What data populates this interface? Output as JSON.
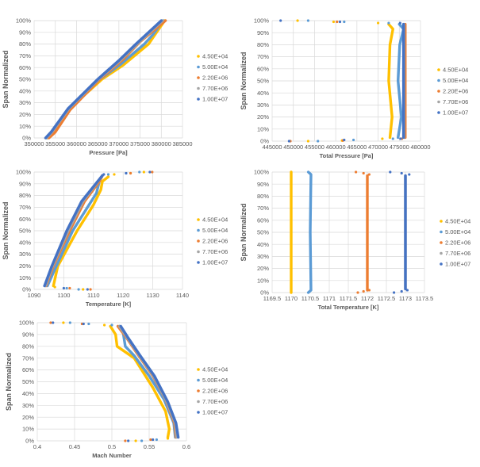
{
  "colors": {
    "4.50E+04": "#FFC000",
    "5.00E+04": "#5B9BD5",
    "2.20E+06": "#ED7D31",
    "7.70E+06": "#A5A5A5",
    "1.00E+07": "#4472C4"
  },
  "chart_data": [
    {
      "type": "scatter",
      "xlabel": "Pressure [Pa]",
      "ylabel": "Span Normalized",
      "xlim": [
        350000,
        385000
      ],
      "ylim": [
        0,
        100
      ],
      "grid": true,
      "legend": "right",
      "xticks": [
        "350000",
        "355000",
        "360000",
        "365000",
        "370000",
        "375000",
        "380000",
        "385000"
      ],
      "yticks": [
        "0%",
        "10%",
        "20%",
        "30%",
        "40%",
        "50%",
        "60%",
        "70%",
        "80%",
        "90%",
        "100%"
      ],
      "series": [
        {
          "name": "4.50E+04",
          "line": [
            [
              353200,
              0
            ],
            [
              358300,
              25
            ],
            [
              366000,
              50
            ],
            [
              371000,
              62
            ],
            [
              377000,
              80
            ],
            [
              378500,
              88
            ],
            [
              380800,
              100
            ]
          ],
          "points": []
        },
        {
          "name": "5.00E+04",
          "line": [
            [
              353000,
              0
            ],
            [
              358300,
              25
            ],
            [
              365500,
              50
            ],
            [
              370500,
              63
            ],
            [
              376000,
              80
            ],
            [
              378000,
              88
            ],
            [
              380500,
              100
            ]
          ],
          "points": []
        },
        {
          "name": "2.20E+06",
          "line": [
            [
              353500,
              0
            ],
            [
              355000,
              5
            ],
            [
              358500,
              24
            ],
            [
              365500,
              50
            ],
            [
              371000,
              67
            ],
            [
              375000,
              82
            ],
            [
              381000,
              100
            ]
          ],
          "points": []
        },
        {
          "name": "7.70E+06",
          "line": [
            [
              352900,
              0
            ],
            [
              354200,
              5
            ],
            [
              358200,
              25
            ],
            [
              365200,
              50
            ],
            [
              370300,
              66
            ],
            [
              374300,
              80
            ],
            [
              380300,
              100
            ]
          ],
          "points": []
        },
        {
          "name": "1.00E+07",
          "line": [
            [
              352700,
              0
            ],
            [
              354000,
              5
            ],
            [
              358000,
              25
            ],
            [
              365000,
              50
            ],
            [
              370000,
              66
            ],
            [
              374000,
              80
            ],
            [
              380000,
              100
            ]
          ],
          "points": []
        }
      ]
    },
    {
      "type": "scatter",
      "xlabel": "Total  Pressure [Pa]",
      "ylabel": "Span Normalized",
      "xlim": [
        445000,
        480000
      ],
      "ylim": [
        0,
        100
      ],
      "grid": true,
      "legend": "right",
      "xticks": [
        "445000",
        "450000",
        "455000",
        "460000",
        "465000",
        "470000",
        "475000",
        "480000"
      ],
      "yticks": [
        "0%",
        "10%",
        "20%",
        "30%",
        "40%",
        "50%",
        "60%",
        "70%",
        "80%",
        "90%",
        "100%"
      ],
      "series": [
        {
          "name": "4.50E+04",
          "line": [
            [
              472800,
              3
            ],
            [
              473300,
              20
            ],
            [
              472500,
              50
            ],
            [
              472800,
              80
            ],
            [
              473500,
              93
            ],
            [
              472500,
              97
            ]
          ],
          "points": [
            [
              451000,
              100
            ],
            [
              459500,
              99
            ],
            [
              470000,
              98
            ],
            [
              471000,
              2
            ],
            [
              453500,
              0
            ],
            [
              461500,
              0.5
            ]
          ]
        },
        {
          "name": "5.00E+04",
          "line": [
            [
              474700,
              3
            ],
            [
              475500,
              20
            ],
            [
              474700,
              50
            ],
            [
              475100,
              80
            ],
            [
              476000,
              93
            ],
            [
              475000,
              97
            ]
          ],
          "points": [
            [
              453500,
              100
            ],
            [
              462000,
              99
            ],
            [
              472500,
              98
            ],
            [
              473500,
              2
            ],
            [
              455800,
              0
            ],
            [
              464200,
              1
            ]
          ]
        },
        {
          "name": "2.20E+06",
          "line": [
            [
              476400,
              3
            ],
            [
              476400,
              97
            ]
          ],
          "points": [
            [
              460300,
              99
            ],
            [
              475600,
              2
            ],
            [
              449300,
              0
            ],
            [
              461700,
              0.5
            ]
          ]
        },
        {
          "name": "7.70E+06",
          "line": [
            [
              476100,
              3
            ],
            [
              476100,
              97
            ]
          ],
          "points": []
        },
        {
          "name": "1.00E+07",
          "line": [
            [
              476000,
              3
            ],
            [
              476000,
              97
            ]
          ],
          "points": [
            [
              447000,
              100
            ],
            [
              461000,
              99
            ],
            [
              475200,
              98
            ],
            [
              475300,
              2
            ],
            [
              449000,
              0
            ],
            [
              462000,
              1
            ]
          ]
        }
      ]
    },
    {
      "type": "scatter",
      "xlabel": "Temperature [K]",
      "ylabel": "Span Normalized",
      "xlim": [
        1090,
        1140
      ],
      "ylim": [
        0,
        100
      ],
      "grid": true,
      "legend": "right",
      "xticks": [
        "1090",
        "1100",
        "1110",
        "1120",
        "1130",
        "1140"
      ],
      "yticks": [
        "0%",
        "10%",
        "20%",
        "30%",
        "40%",
        "50%",
        "60%",
        "70%",
        "80%",
        "90%",
        "100%"
      ],
      "series": [
        {
          "name": "4.50E+04",
          "line": [
            [
              1096.5,
              3
            ],
            [
              1098,
              20
            ],
            [
              1104.5,
              50
            ],
            [
              1110,
              72
            ],
            [
              1112.5,
              85
            ],
            [
              1113,
              92
            ],
            [
              1115,
              96
            ]
          ],
          "points": [
            [
              1117,
              98
            ],
            [
              1122.5,
              99
            ],
            [
              1127,
              100
            ],
            [
              1097,
              2
            ],
            [
              1106.5,
              0
            ]
          ]
        },
        {
          "name": "5.00E+04",
          "line": [
            [
              1094.5,
              3
            ],
            [
              1097.5,
              20
            ],
            [
              1103,
              50
            ],
            [
              1108.5,
              72
            ],
            [
              1111,
              82
            ],
            [
              1112,
              92
            ],
            [
              1113,
              97
            ]
          ],
          "points": [
            [
              1115,
              98
            ],
            [
              1121,
              99
            ],
            [
              1125.5,
              100
            ],
            [
              1101,
              1
            ],
            [
              1105,
              0
            ]
          ]
        },
        {
          "name": "2.20E+06",
          "line": [
            [
              1094,
              3
            ],
            [
              1096.5,
              20
            ],
            [
              1102,
              50
            ],
            [
              1107,
              75
            ],
            [
              1112,
              92
            ],
            [
              1113,
              97
            ]
          ],
          "points": [
            [
              1122.5,
              99
            ],
            [
              1129.8,
              100
            ],
            [
              1102,
              1
            ],
            [
              1109,
              0
            ]
          ]
        },
        {
          "name": "7.70E+06",
          "line": [
            [
              1093.8,
              3
            ],
            [
              1096.2,
              20
            ],
            [
              1101.5,
              50
            ],
            [
              1106.5,
              75
            ],
            [
              1113,
              97
            ]
          ],
          "points": []
        },
        {
          "name": "1.00E+07",
          "line": [
            [
              1093.5,
              3
            ],
            [
              1096,
              20
            ],
            [
              1101,
              50
            ],
            [
              1106,
              75
            ],
            [
              1113,
              97
            ]
          ],
          "points": [
            [
              1113.5,
              98
            ],
            [
              1121,
              99
            ],
            [
              1129,
              100
            ],
            [
              1100,
              1
            ],
            [
              1108,
              0
            ]
          ]
        }
      ]
    },
    {
      "type": "scatter",
      "xlabel": "Total  Temperature [K]",
      "ylabel": "Span Normalized",
      "xlim": [
        1169.5,
        1173.5
      ],
      "ylim": [
        0,
        100
      ],
      "grid": true,
      "legend": "right",
      "xticks": [
        "1169.5",
        "1170",
        "1170.5",
        "1171",
        "1171.5",
        "1172",
        "1172.5",
        "1173",
        "1173.5"
      ],
      "yticks": [
        "0%",
        "10%",
        "20%",
        "30%",
        "40%",
        "50%",
        "60%",
        "70%",
        "80%",
        "90%",
        "100%"
      ],
      "series": [
        {
          "name": "4.50E+04",
          "line": [
            [
              1170,
              0
            ],
            [
              1170,
              100
            ]
          ],
          "points": []
        },
        {
          "name": "5.00E+04",
          "line": [
            [
              1170.45,
              0
            ],
            [
              1170.52,
              2
            ],
            [
              1170.5,
              50
            ],
            [
              1170.52,
              98
            ],
            [
              1170.45,
              100
            ]
          ],
          "points": []
        },
        {
          "name": "2.20E+06",
          "line": [
            [
              1172,
              2
            ],
            [
              1172,
              97
            ]
          ],
          "points": [
            [
              1171.7,
              100
            ],
            [
              1171.9,
              99
            ],
            [
              1172.05,
              98
            ],
            [
              1171.75,
              0
            ],
            [
              1171.9,
              1
            ],
            [
              1172.05,
              2
            ]
          ]
        },
        {
          "name": "7.70E+06",
          "line": [
            [
              1173,
              3
            ],
            [
              1173,
              97
            ]
          ],
          "points": []
        },
        {
          "name": "1.00E+07",
          "line": [
            [
              1173,
              3
            ],
            [
              1173,
              97
            ]
          ],
          "points": [
            [
              1172.6,
              100
            ],
            [
              1172.9,
              99
            ],
            [
              1173.1,
              98
            ],
            [
              1172.7,
              0
            ],
            [
              1172.9,
              1
            ],
            [
              1173.05,
              2
            ]
          ]
        }
      ]
    },
    {
      "type": "scatter",
      "xlabel": "Mach Number",
      "ylabel": "Span Normalized",
      "xlim": [
        0.4,
        0.6
      ],
      "ylim": [
        0,
        100
      ],
      "grid": true,
      "legend": "right",
      "xticks": [
        "0.4",
        "0.45",
        "0.5",
        "0.55",
        "0.6"
      ],
      "yticks": [
        "0%",
        "10%",
        "20%",
        "30%",
        "40%",
        "50%",
        "60%",
        "70%",
        "80%",
        "90%",
        "100%"
      ],
      "series": [
        {
          "name": "4.50E+04",
          "line": [
            [
              0.575,
              3
            ],
            [
              0.577,
              10
            ],
            [
              0.572,
              25
            ],
            [
              0.555,
              45
            ],
            [
              0.53,
              70
            ],
            [
              0.507,
              80
            ],
            [
              0.505,
              90
            ],
            [
              0.498,
              97
            ]
          ],
          "points": [
            [
              0.49,
              98
            ],
            [
              0.435,
              100
            ],
            [
              0.575,
              2
            ],
            [
              0.532,
              0
            ]
          ]
        },
        {
          "name": "5.00E+04",
          "line": [
            [
              0.585,
              3
            ],
            [
              0.583,
              15
            ],
            [
              0.57,
              35
            ],
            [
              0.55,
              55
            ],
            [
              0.53,
              72
            ],
            [
              0.518,
              80
            ],
            [
              0.515,
              92
            ],
            [
              0.51,
              97
            ]
          ],
          "points": [
            [
              0.5,
              98
            ],
            [
              0.444,
              100
            ],
            [
              0.469,
              99
            ],
            [
              0.56,
              1
            ],
            [
              0.54,
              0
            ]
          ]
        },
        {
          "name": "2.20E+06",
          "line": [
            [
              0.586,
              3
            ],
            [
              0.584,
              15
            ],
            [
              0.572,
              35
            ],
            [
              0.555,
              55
            ],
            [
              0.535,
              73
            ],
            [
              0.52,
              87
            ],
            [
              0.508,
              97
            ]
          ],
          "points": [
            [
              0.46,
              99
            ],
            [
              0.418,
              100
            ],
            [
              0.552,
              1
            ],
            [
              0.518,
              0
            ]
          ]
        },
        {
          "name": "7.70E+06",
          "line": [
            [
              0.587,
              3
            ],
            [
              0.585,
              15
            ],
            [
              0.573,
              34
            ],
            [
              0.556,
              55
            ],
            [
              0.536,
              73
            ],
            [
              0.521,
              87
            ],
            [
              0.51,
              97
            ]
          ],
          "points": []
        },
        {
          "name": "1.00E+07",
          "line": [
            [
              0.589,
              3
            ],
            [
              0.586,
              15
            ],
            [
              0.575,
              33
            ],
            [
              0.557,
              55
            ],
            [
              0.537,
              73
            ],
            [
              0.522,
              87
            ],
            [
              0.512,
              97
            ]
          ],
          "points": [
            [
              0.462,
              99
            ],
            [
              0.421,
              100
            ],
            [
              0.555,
              1
            ],
            [
              0.522,
              0
            ]
          ]
        }
      ]
    }
  ]
}
